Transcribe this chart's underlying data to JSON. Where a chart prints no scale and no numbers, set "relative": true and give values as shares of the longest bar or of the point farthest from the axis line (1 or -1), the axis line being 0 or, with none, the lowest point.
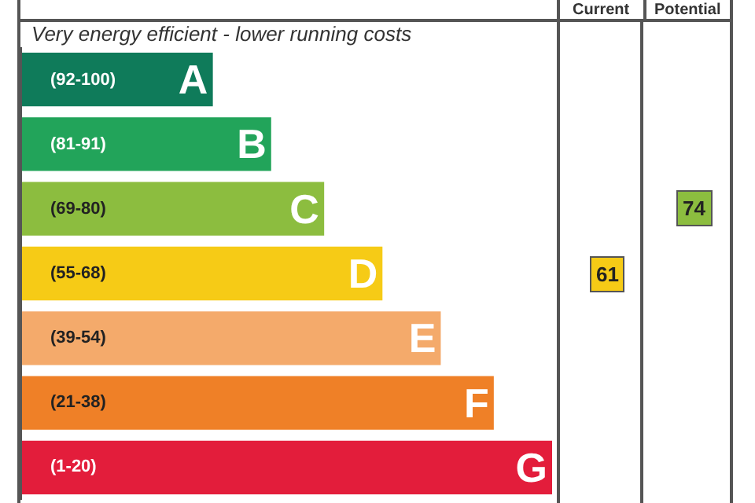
{
  "chart_data": {
    "type": "bar",
    "orientation": "horizontal",
    "relative": true,
    "title": "Very energy efficient - lower running costs",
    "categories": [
      "A",
      "B",
      "C",
      "D",
      "E",
      "F",
      "G"
    ],
    "values": [
      0.36,
      0.47,
      0.57,
      0.68,
      0.79,
      0.89,
      1
    ],
    "colors": [
      "#0f7b5a",
      "#22a45a",
      "#8cbd3f",
      "#f6cb16",
      "#f4aa6b",
      "#ef8027",
      "#e31d3b"
    ],
    "annotations": [
      "Current",
      "Potential",
      "61",
      "74",
      "(92-100)",
      "(81-91)",
      "(69-80)",
      "(55-68)",
      "(39-54)",
      "(21-38)",
      "(1-20)"
    ]
  }
}
